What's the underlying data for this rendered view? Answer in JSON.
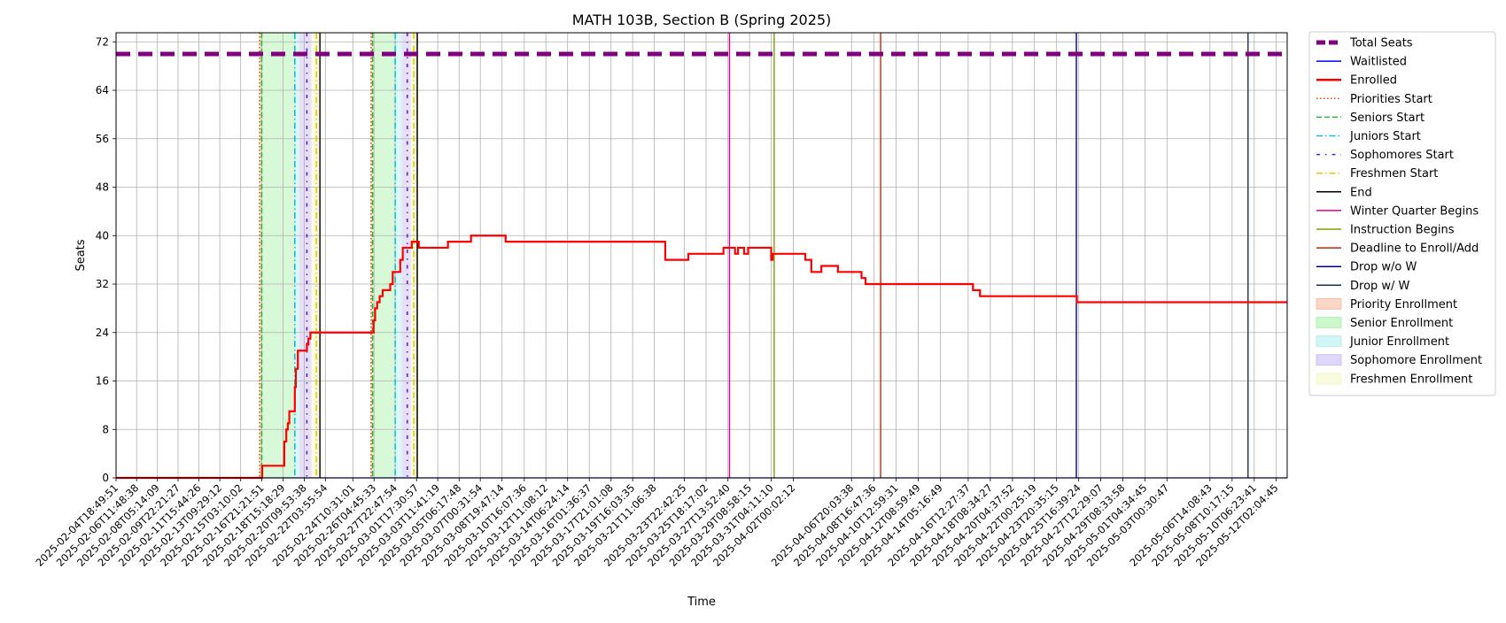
{
  "chart_data": {
    "type": "line",
    "title": "MATH 103B, Section B (Spring 2025)",
    "xlabel": "Time",
    "ylabel": "Seats",
    "ylim": [
      0,
      73.5
    ],
    "xlim": [
      "2025-02-04T18:49:51",
      "2025-05-13T00:00:00"
    ],
    "yticks": [
      0,
      8,
      16,
      24,
      32,
      40,
      48,
      56,
      64,
      72
    ],
    "grid": true,
    "legend_position": "outside-right",
    "xtick_labels": [
      "2025-02-04T18:49:51",
      "2025-02-06T11:48:38",
      "2025-02-08T05:14:09",
      "2025-02-09T22:21:27",
      "2025-02-11T15:44:26",
      "2025-02-13T09:29:12",
      "2025-02-15T03:10:02",
      "2025-02-16T21:21:51",
      "2025-02-18T15:18:29",
      "2025-02-20T09:53:38",
      "2025-02-22T03:55:54",
      "2025-02-24T10:31:01",
      "2025-02-26T04:45:33",
      "2025-02-27T22:47:54",
      "2025-03-01T17:30:57",
      "2025-03-03T11:41:19",
      "2025-03-05T06:17:48",
      "2025-03-07T00:31:54",
      "2025-03-08T19:47:14",
      "2025-03-10T16:07:36",
      "2025-03-12T11:08:12",
      "2025-03-14T06:24:14",
      "2025-03-16T01:36:37",
      "2025-03-17T21:01:08",
      "2025-03-19T16:03:35",
      "2025-03-21T11:06:38",
      "2025-03-23T22:42:25",
      "2025-03-25T18:17:02",
      "2025-03-27T13:52:40",
      "2025-03-29T08:58:15",
      "2025-03-31T04:11:10",
      "2025-04-02T00:02:12",
      "2025-04-06T20:03:38",
      "2025-04-08T16:47:36",
      "2025-04-10T12:59:31",
      "2025-04-12T08:59:49",
      "2025-04-14T05:16:49",
      "2025-04-16T12:27:37",
      "2025-04-18T08:34:27",
      "2025-04-20T04:37:52",
      "2025-04-22T00:25:19",
      "2025-04-23T20:35:15",
      "2025-04-25T16:39:24",
      "2025-04-27T12:29:07",
      "2025-04-29T08:33:58",
      "2025-05-01T04:34:45",
      "2025-05-03T00:30:47",
      "2025-05-06T14:08:43",
      "2025-05-08T10:17:15",
      "2025-05-10T06:23:41",
      "2025-05-12T02:04:45"
    ],
    "series": [
      {
        "name": "Total Seats",
        "color": "#800080",
        "style": "dashed-thick",
        "points": [
          [
            "2025-02-04T18:49:51",
            70
          ],
          [
            "2025-05-13T00:00:00",
            70
          ]
        ]
      },
      {
        "name": "Waitlisted",
        "color": "#0000ff",
        "style": "solid",
        "points": [
          [
            "2025-02-04T18:49:51",
            0
          ],
          [
            "2025-05-13T00:00:00",
            0
          ]
        ]
      },
      {
        "name": "Enrolled",
        "color": "#ff0000",
        "style": "step",
        "points": [
          [
            "2025-02-04T18:49:51",
            0
          ],
          [
            "2025-02-16T19:00:00",
            0
          ],
          [
            "2025-02-16T22:00:00",
            2
          ],
          [
            "2025-02-18T14:00:00",
            2
          ],
          [
            "2025-02-18T18:00:00",
            6
          ],
          [
            "2025-02-18T22:00:00",
            8
          ],
          [
            "2025-02-19T01:00:00",
            9
          ],
          [
            "2025-02-19T04:00:00",
            11
          ],
          [
            "2025-02-19T12:00:00",
            11
          ],
          [
            "2025-02-19T15:00:00",
            15
          ],
          [
            "2025-02-19T17:00:00",
            18
          ],
          [
            "2025-02-19T21:00:00",
            21
          ],
          [
            "2025-02-20T12:00:00",
            21
          ],
          [
            "2025-02-20T15:00:00",
            22
          ],
          [
            "2025-02-20T18:00:00",
            23
          ],
          [
            "2025-02-20T22:00:00",
            24
          ],
          [
            "2025-02-26T02:00:00",
            24
          ],
          [
            "2025-02-26T04:00:00",
            26
          ],
          [
            "2025-02-26T07:00:00",
            28
          ],
          [
            "2025-02-26T11:00:00",
            29
          ],
          [
            "2025-02-26T16:00:00",
            30
          ],
          [
            "2025-02-26T22:00:00",
            31
          ],
          [
            "2025-02-27T10:00:00",
            31
          ],
          [
            "2025-02-27T13:00:00",
            32
          ],
          [
            "2025-02-27T18:00:00",
            34
          ],
          [
            "2025-02-28T06:00:00",
            34
          ],
          [
            "2025-02-28T09:00:00",
            36
          ],
          [
            "2025-02-28T14:00:00",
            38
          ],
          [
            "2025-03-01T05:00:00",
            38
          ],
          [
            "2025-03-01T08:00:00",
            39
          ],
          [
            "2025-03-01T18:00:00",
            39
          ],
          [
            "2025-03-01T22:00:00",
            38
          ],
          [
            "2025-03-04T06:00:00",
            38
          ],
          [
            "2025-03-04T08:00:00",
            39
          ],
          [
            "2025-03-06T03:00:00",
            39
          ],
          [
            "2025-03-06T06:00:00",
            40
          ],
          [
            "2025-03-09T00:00:00",
            40
          ],
          [
            "2025-03-09T03:00:00",
            39
          ],
          [
            "2025-03-22T06:00:00",
            39
          ],
          [
            "2025-03-22T09:00:00",
            36
          ],
          [
            "2025-03-24T04:00:00",
            36
          ],
          [
            "2025-03-24T07:00:00",
            37
          ],
          [
            "2025-03-27T02:00:00",
            37
          ],
          [
            "2025-03-27T05:00:00",
            38
          ],
          [
            "2025-03-28T02:00:00",
            38
          ],
          [
            "2025-03-28T04:00:00",
            37
          ],
          [
            "2025-03-28T10:00:00",
            38
          ],
          [
            "2025-03-28T20:00:00",
            38
          ],
          [
            "2025-03-28T22:00:00",
            37
          ],
          [
            "2025-03-29T06:00:00",
            38
          ],
          [
            "2025-03-31T02:00:00",
            38
          ],
          [
            "2025-03-31T04:00:00",
            36
          ],
          [
            "2025-03-31T07:00:00",
            37
          ],
          [
            "2025-04-02T21:00:00",
            37
          ],
          [
            "2025-04-03T00:00:00",
            36
          ],
          [
            "2025-04-03T12:00:00",
            34
          ],
          [
            "2025-04-04T08:00:00",
            35
          ],
          [
            "2025-04-05T17:00:00",
            34
          ],
          [
            "2025-04-07T16:00:00",
            33
          ],
          [
            "2025-04-08T00:00:00",
            32
          ],
          [
            "2025-04-16T22:00:00",
            31
          ],
          [
            "2025-04-17T12:00:00",
            30
          ],
          [
            "2025-04-25T13:00:00",
            29
          ],
          [
            "2025-05-13T00:00:00",
            29
          ]
        ]
      }
    ],
    "vlines": [
      {
        "name": "Priorities Start",
        "color": "#ff4500",
        "style": "dotted",
        "x": "2025-02-16T17:00:00"
      },
      {
        "name": "Seniors Start",
        "color": "#2eb82e",
        "style": "dashed",
        "x": "2025-02-16T21:00:00"
      },
      {
        "name": "Juniors Start",
        "color": "#17becf",
        "style": "dashdot",
        "x": "2025-02-19T15:00:00"
      },
      {
        "name": "Sophomores Start",
        "color": "#5b1fd1",
        "style": "dashdot-dense",
        "x": "2025-02-20T15:00:00"
      },
      {
        "name": "Freshmen Start",
        "color": "#e6c700",
        "style": "dashdot",
        "x": "2025-02-21T10:00:00"
      },
      {
        "name": "End",
        "color": "#000000",
        "style": "solid",
        "x": "2025-02-21T17:00:00"
      },
      {
        "name": "Priorities Start",
        "color": "#ff4500",
        "style": "dotted",
        "x": "2025-02-25T23:00:00"
      },
      {
        "name": "Seniors Start",
        "color": "#2eb82e",
        "style": "dashed",
        "x": "2025-02-26T02:00:00"
      },
      {
        "name": "Juniors Start",
        "color": "#17becf",
        "style": "dashdot",
        "x": "2025-02-27T23:00:00"
      },
      {
        "name": "Sophomores Start",
        "color": "#5b1fd1",
        "style": "dashdot-dense",
        "x": "2025-02-28T23:00:00"
      },
      {
        "name": "Freshmen Start",
        "color": "#e6c700",
        "style": "dashdot",
        "x": "2025-03-01T12:00:00"
      },
      {
        "name": "End",
        "color": "#000000",
        "style": "solid",
        "x": "2025-03-01T19:00:00"
      },
      {
        "name": "Winter Quarter Begins",
        "color": "#e0009e",
        "style": "solid",
        "x": "2025-03-27T17:00:00"
      },
      {
        "name": "Instruction Begins",
        "color": "#7f9f00",
        "style": "solid",
        "x": "2025-03-31T10:00:00"
      },
      {
        "name": "Deadline to Enroll/Add",
        "color": "#cc2200",
        "style": "solid",
        "x": "2025-04-09T06:00:00"
      },
      {
        "name": "Drop w/o W",
        "color": "#00007f",
        "style": "solid",
        "x": "2025-04-25T12:00:00"
      },
      {
        "name": "Drop w/ W",
        "color": "#1f2f3f",
        "style": "solid",
        "x": "2025-05-09T18:00:00"
      }
    ],
    "spans": [
      {
        "name": "Priority Enrollment",
        "color": "#f4a582",
        "from": "2025-02-16T17:00:00",
        "to": "2025-02-16T21:00:00"
      },
      {
        "name": "Senior Enrollment",
        "color": "#90ee90",
        "from": "2025-02-16T21:00:00",
        "to": "2025-02-19T15:00:00"
      },
      {
        "name": "Junior Enrollment",
        "color": "#9ae8e8",
        "from": "2025-02-19T15:00:00",
        "to": "2025-02-20T00:00:00"
      },
      {
        "name": "Sophomore Enrollment",
        "color": "#b9a7ee",
        "from": "2025-02-20T00:00:00",
        "to": "2025-02-21T00:00:00"
      },
      {
        "name": "Freshmen Enrollment",
        "color": "#f5f5b5",
        "from": "2025-02-21T00:00:00",
        "to": "2025-02-21T17:00:00"
      },
      {
        "name": "Priority Enrollment",
        "color": "#f4a582",
        "from": "2025-02-25T23:00:00",
        "to": "2025-02-26T02:00:00"
      },
      {
        "name": "Senior Enrollment",
        "color": "#90ee90",
        "from": "2025-02-26T02:00:00",
        "to": "2025-02-27T23:00:00"
      },
      {
        "name": "Junior Enrollment",
        "color": "#9ae8e8",
        "from": "2025-02-27T23:00:00",
        "to": "2025-02-28T12:00:00"
      },
      {
        "name": "Sophomore Enrollment",
        "color": "#b9a7ee",
        "from": "2025-02-28T12:00:00",
        "to": "2025-03-01T06:00:00"
      },
      {
        "name": "Freshmen Enrollment",
        "color": "#f5f5b5",
        "from": "2025-03-01T06:00:00",
        "to": "2025-03-01T19:00:00"
      }
    ],
    "legend": [
      {
        "label": "Total Seats",
        "kind": "line",
        "color": "#800080",
        "style": "dashed-thick"
      },
      {
        "label": "Waitlisted",
        "kind": "line",
        "color": "#0000ff",
        "style": "solid"
      },
      {
        "label": "Enrolled",
        "kind": "line",
        "color": "#ff0000",
        "style": "solid-thick"
      },
      {
        "label": "Priorities Start",
        "kind": "line",
        "color": "#ff4500",
        "style": "dotted"
      },
      {
        "label": "Seniors Start",
        "kind": "line",
        "color": "#2eb82e",
        "style": "dashed"
      },
      {
        "label": "Juniors Start",
        "kind": "line",
        "color": "#17becf",
        "style": "dashdot"
      },
      {
        "label": "Sophomores Start",
        "kind": "line",
        "color": "#5b1fd1",
        "style": "dashdot-dense"
      },
      {
        "label": "Freshmen Start",
        "kind": "line",
        "color": "#e6c700",
        "style": "dashdot"
      },
      {
        "label": "End",
        "kind": "line",
        "color": "#000000",
        "style": "solid"
      },
      {
        "label": "Winter Quarter Begins",
        "kind": "line",
        "color": "#e0009e",
        "style": "solid"
      },
      {
        "label": "Instruction Begins",
        "kind": "line",
        "color": "#7f9f00",
        "style": "solid"
      },
      {
        "label": "Deadline to Enroll/Add",
        "kind": "line",
        "color": "#cc2200",
        "style": "solid"
      },
      {
        "label": "Drop w/o W",
        "kind": "line",
        "color": "#00007f",
        "style": "solid"
      },
      {
        "label": "Drop w/ W",
        "kind": "line",
        "color": "#1f2f3f",
        "style": "solid"
      },
      {
        "label": "Priority Enrollment",
        "kind": "patch",
        "color": "#f4a582"
      },
      {
        "label": "Senior Enrollment",
        "kind": "patch",
        "color": "#90ee90"
      },
      {
        "label": "Junior Enrollment",
        "kind": "patch",
        "color": "#9ae8e8"
      },
      {
        "label": "Sophomore Enrollment",
        "kind": "patch",
        "color": "#b9a7ee"
      },
      {
        "label": "Freshmen Enrollment",
        "kind": "patch",
        "color": "#f5f5b5"
      }
    ]
  }
}
